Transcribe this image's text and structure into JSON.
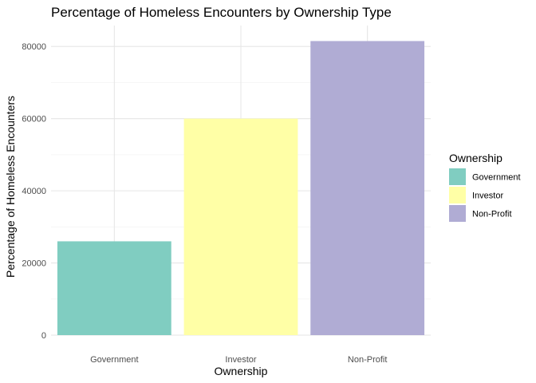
{
  "chart_data": {
    "type": "bar",
    "title": "Percentage of Homeless Encounters by Ownership Type",
    "xlabel": "Ownership",
    "ylabel": "Percentage of Homeless Encounters",
    "categories": [
      "Government",
      "Investor",
      "Non-Profit"
    ],
    "values": [
      26000,
      60000,
      81500
    ],
    "colors": [
      "#80cdc1",
      "#ffffa6",
      "#b0acd4"
    ],
    "ylim": [
      0,
      85800
    ],
    "yticks": [
      0,
      20000,
      40000,
      60000,
      80000
    ],
    "ytick_labels": [
      "0",
      "20000",
      "40000",
      "60000",
      "80000"
    ],
    "grid": true,
    "legend": {
      "title": "Ownership",
      "placement": "right",
      "entries": [
        "Government",
        "Investor",
        "Non-Profit"
      ]
    }
  }
}
